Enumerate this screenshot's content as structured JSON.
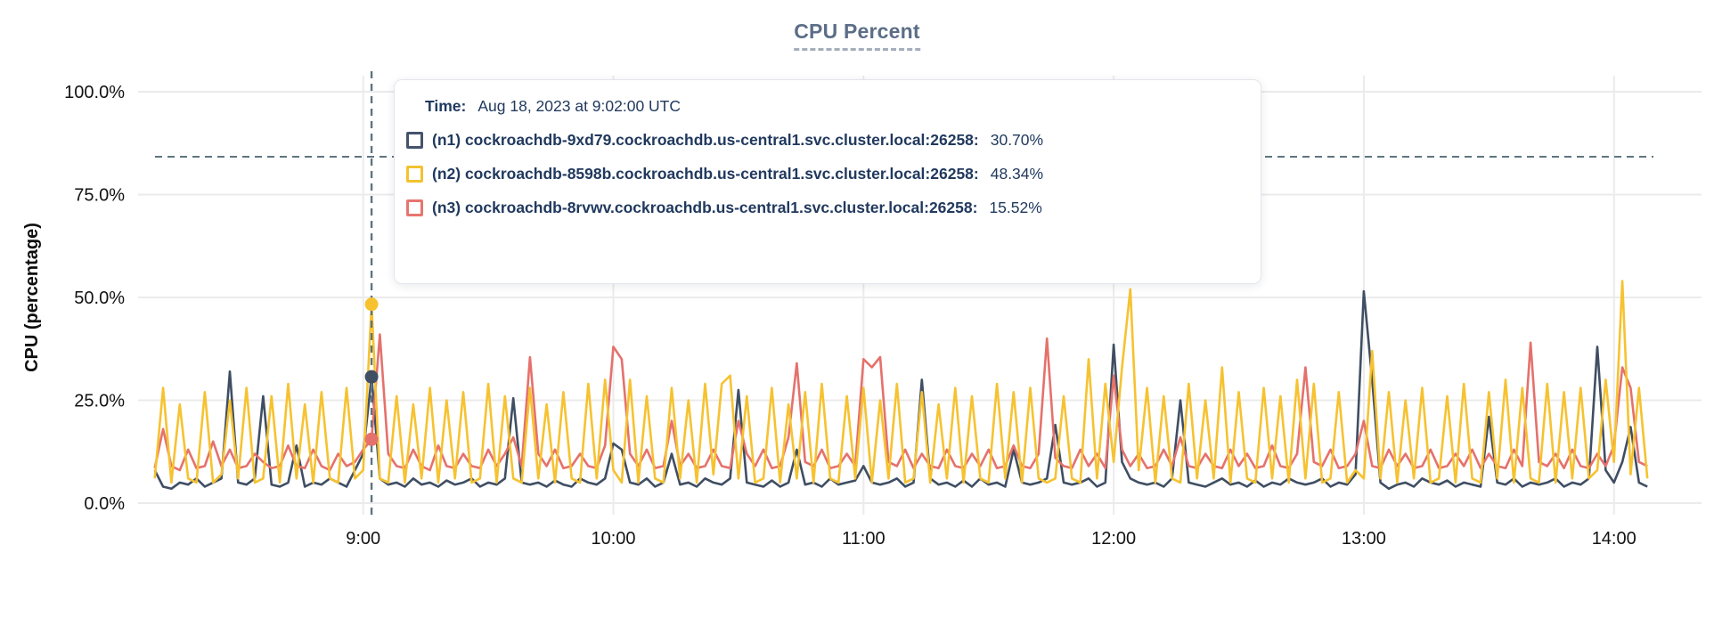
{
  "title": "CPU Percent",
  "y_axis": {
    "label": "CPU (percentage)"
  },
  "tooltip": {
    "time_label": "Time:",
    "time_value": "Aug 18, 2023 at 9:02:00 UTC",
    "series": [
      {
        "id": "n1",
        "name": "(n1) cockroachdb-9xd79.cockroachdb.us-central1.svc.cluster.local:26258:",
        "value": "30.70%",
        "color": "#44536b"
      },
      {
        "id": "n2",
        "name": "(n2) cockroachdb-8598b.cockroachdb.us-central1.svc.cluster.local:26258:",
        "value": "48.34%",
        "color": "#f2c230"
      },
      {
        "id": "n3",
        "name": "(n3) cockroachdb-8rvwv.cockroachdb.us-central1.svc.cluster.local:26258:",
        "value": "15.52%",
        "color": "#e8746f"
      }
    ]
  },
  "chart_data": {
    "type": "line",
    "title": "CPU Percent",
    "ylabel": "CPU (percentage)",
    "ylim": [
      0,
      100
    ],
    "grid": true,
    "y_ticks": [
      {
        "value": 0,
        "label": "0.0%"
      },
      {
        "value": 25,
        "label": "25.0%"
      },
      {
        "value": 50,
        "label": "50.0%"
      },
      {
        "value": 75,
        "label": "75.0%"
      },
      {
        "value": 100,
        "label": "100.0%"
      }
    ],
    "x_ticks": [
      {
        "min": 540,
        "label": "9:00"
      },
      {
        "min": 600,
        "label": "10:00"
      },
      {
        "min": 660,
        "label": "11:00"
      },
      {
        "min": 720,
        "label": "12:00"
      },
      {
        "min": 780,
        "label": "13:00"
      },
      {
        "min": 840,
        "label": "14:00"
      }
    ],
    "x_domain_min": [
      486,
      861
    ],
    "x_start_min": 490,
    "x_step_min": 2,
    "hover": {
      "index": 26,
      "time_min": 542,
      "crosshair_value": 84.2
    },
    "series": [
      {
        "id": "n1",
        "color": "#3f4e63",
        "values": [
          8,
          4,
          3.5,
          5,
          4.5,
          6,
          4,
          5,
          6,
          32,
          5,
          4.5,
          6,
          26,
          4.5,
          4,
          5,
          14,
          4,
          5,
          4.5,
          6,
          5,
          4,
          8,
          12,
          30.7,
          6,
          4.5,
          5,
          4,
          6,
          4.5,
          5,
          4,
          5.5,
          4.5,
          5,
          6,
          4,
          5,
          4.5,
          6,
          25.5,
          5,
          4.5,
          5,
          4,
          5.5,
          4.5,
          4,
          6,
          5,
          4.5,
          6,
          14.5,
          13,
          5,
          4.5,
          6,
          4,
          5,
          12,
          4.5,
          5,
          4,
          6,
          5,
          4.5,
          6,
          27.5,
          5,
          4.5,
          4,
          5.5,
          4,
          5,
          13,
          4.5,
          5,
          4,
          6,
          4.5,
          5,
          5.5,
          9,
          5,
          4.5,
          5,
          6,
          4,
          5,
          30,
          6,
          4.5,
          5,
          4,
          5.5,
          4,
          6,
          4.5,
          5,
          4,
          13,
          5,
          4.5,
          5,
          6,
          19,
          5,
          4.5,
          5,
          6,
          4,
          5,
          38.5,
          10,
          6,
          5,
          4.5,
          5,
          4,
          6,
          25,
          5,
          4.5,
          4,
          5,
          6,
          4.5,
          5,
          4,
          5.5,
          4,
          5,
          4.5,
          6,
          5,
          4.5,
          5,
          6,
          4,
          5,
          4.5,
          7,
          51.5,
          30,
          5,
          3.5,
          4.5,
          5,
          4,
          6,
          5,
          4.5,
          5.5,
          4,
          5,
          4.5,
          4,
          21,
          5,
          4.5,
          6,
          4,
          5,
          4.5,
          5,
          6,
          4,
          5,
          4.5,
          6,
          38,
          8,
          5,
          10,
          18.5,
          5,
          4
        ]
      },
      {
        "id": "n2",
        "color": "#f6c230",
        "values": [
          6,
          28,
          5,
          24,
          6,
          5,
          27,
          5,
          7,
          25,
          6,
          28,
          5,
          6,
          26,
          5,
          29,
          6,
          24,
          5,
          27,
          6,
          5,
          28,
          6,
          8,
          48.34,
          6,
          5,
          26,
          5,
          24,
          6,
          28,
          5,
          25,
          6,
          27,
          5,
          6,
          29,
          5,
          26,
          6,
          5,
          28,
          6,
          24,
          5,
          27,
          6,
          5,
          29,
          6,
          30,
          8,
          5,
          30,
          5,
          26,
          6,
          5,
          28,
          6,
          25,
          5,
          29,
          7,
          29,
          31,
          6,
          26,
          5,
          6,
          28,
          5,
          24,
          6,
          27,
          5,
          29,
          6,
          5,
          26,
          6,
          28,
          5,
          25,
          6,
          29,
          5,
          6,
          27,
          5,
          24,
          6,
          28,
          5,
          26,
          6,
          5,
          29,
          6,
          27,
          5,
          28,
          6,
          5,
          6,
          26,
          6,
          5,
          35,
          6,
          29,
          10,
          33,
          52,
          8,
          28,
          5,
          26,
          6,
          5,
          29,
          6,
          25,
          6,
          33,
          5,
          27,
          6,
          5,
          28,
          6,
          26,
          5,
          30,
          6,
          29,
          5,
          6,
          27,
          5,
          8,
          6,
          37,
          6,
          27,
          5,
          25,
          6,
          28,
          5,
          6,
          26,
          5,
          29,
          6,
          5,
          27,
          6,
          30,
          5,
          28,
          6,
          5,
          29,
          5,
          27,
          6,
          28,
          6,
          8,
          30,
          10,
          54,
          7,
          28,
          6
        ]
      },
      {
        "id": "n3",
        "color": "#e5716c",
        "values": [
          8.5,
          18,
          9,
          8,
          13,
          8.5,
          9,
          15,
          9,
          13,
          8.5,
          9,
          12,
          10,
          8.5,
          9,
          14,
          9,
          8.5,
          13,
          9,
          8,
          12,
          9,
          10,
          13,
          15.52,
          41,
          12,
          9,
          8.5,
          13,
          9,
          8,
          14,
          9,
          8.5,
          12,
          9,
          8.5,
          13,
          9,
          12,
          16,
          9,
          35.5,
          12,
          9,
          13,
          8.5,
          9,
          12,
          9,
          8.5,
          14,
          38,
          35,
          12,
          9,
          13,
          8.5,
          9,
          20,
          9,
          12,
          8.5,
          9,
          13,
          9,
          8.5,
          20,
          12,
          9,
          13,
          8.5,
          9,
          16,
          34,
          10,
          9,
          13,
          8.5,
          9,
          12,
          9,
          35,
          33,
          35.5,
          10,
          9,
          13,
          8.5,
          12,
          9,
          8.5,
          13,
          9,
          8.5,
          12,
          9,
          13,
          8.5,
          9,
          14,
          9,
          8.5,
          12,
          40,
          11,
          9,
          8.5,
          13,
          9,
          12,
          8.5,
          31,
          13,
          9,
          12,
          8.5,
          9,
          13,
          9,
          16,
          9,
          8.5,
          12,
          9,
          8.5,
          13,
          9,
          12,
          8.5,
          9,
          14,
          9,
          8.5,
          12,
          33,
          10,
          9,
          13,
          8.5,
          9,
          12,
          20,
          9,
          8.5,
          13,
          9,
          12,
          8.5,
          9,
          13,
          8.5,
          9,
          12,
          9,
          13,
          8.5,
          12,
          9,
          8.5,
          13,
          9,
          39,
          10,
          9,
          12,
          8.5,
          13,
          9,
          8.5,
          12,
          9,
          14,
          33,
          28,
          10,
          9
        ]
      }
    ]
  }
}
